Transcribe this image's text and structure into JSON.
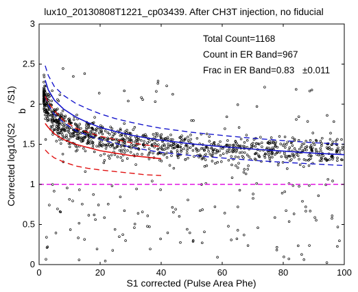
{
  "chart_data": {
    "type": "scatter",
    "title": "lux10_20130808T1221_cp03439. After CH3T injection, no fiducial",
    "xlabel": "S1 corrected (Pulse Area Phe)",
    "ylabel_main": "Corrected log10(S2",
    "ylabel_sub": "b",
    "ylabel_end": "/S1)",
    "xlim": [
      0,
      100
    ],
    "ylim": [
      0,
      3
    ],
    "xticks": [
      "0",
      "20",
      "40",
      "60",
      "80",
      "100"
    ],
    "yticks": [
      "0",
      "0.5",
      "1",
      "1.5",
      "2",
      "2.5",
      "3"
    ],
    "grid": false,
    "annotations": {
      "total_count": "Total Count=1168",
      "count_er": "Count in ER Band=967",
      "frac_er": "Frac in ER Band=0.83",
      "frac_err": "±0.011"
    },
    "colors": {
      "er_band": "#1515cc",
      "nr_band": "#e01010",
      "threshold": "#e010e0",
      "points": "#000000"
    },
    "threshold_line": {
      "y": 1.0
    },
    "er_band": {
      "x": [
        2,
        3,
        5,
        8,
        12,
        16,
        20,
        25,
        30,
        35,
        40,
        50,
        60,
        70,
        80,
        90,
        100
      ],
      "median": [
        2.3,
        2.18,
        2.05,
        1.94,
        1.84,
        1.77,
        1.71,
        1.66,
        1.615,
        1.58,
        1.55,
        1.505,
        1.47,
        1.44,
        1.415,
        1.39,
        1.37
      ],
      "upper": [
        2.48,
        2.36,
        2.22,
        2.11,
        2.01,
        1.94,
        1.88,
        1.82,
        1.775,
        1.735,
        1.7,
        1.65,
        1.61,
        1.575,
        1.545,
        1.52,
        1.5
      ],
      "lower": [
        2.1,
        1.99,
        1.87,
        1.77,
        1.67,
        1.61,
        1.56,
        1.51,
        1.465,
        1.43,
        1.4,
        1.36,
        1.33,
        1.3,
        1.275,
        1.255,
        1.235
      ]
    },
    "nr_band": {
      "x": [
        2,
        3,
        5,
        8,
        12,
        16,
        20,
        25,
        30,
        35,
        40
      ],
      "median": [
        1.76,
        1.71,
        1.63,
        1.56,
        1.5,
        1.46,
        1.42,
        1.39,
        1.36,
        1.34,
        1.32
      ],
      "upper": [
        2.1,
        2.02,
        1.92,
        1.8,
        1.7,
        1.65,
        1.6,
        1.56,
        1.52,
        1.49,
        1.47
      ],
      "lower": [
        1.43,
        1.39,
        1.33,
        1.28,
        1.23,
        1.2,
        1.18,
        1.16,
        1.14,
        1.12,
        1.11
      ]
    }
  }
}
